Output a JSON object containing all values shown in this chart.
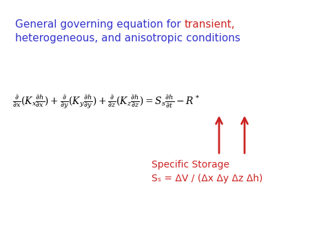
{
  "title_blue_part": "General governing equation for ",
  "title_red_part": "transient,",
  "title_line2": "heterogeneous, and anisotropic conditions",
  "title_color_blue": "#3333CC",
  "title_color_red": "#CC2222",
  "annotation_line1": "Specific Storage",
  "annotation_line2": "Sₛ = ΔV / (Δx Δy Δz Δh)",
  "annotation_color": "#CC2222",
  "arrow_color": "#CC2222",
  "bg_color": "#FFFFFF",
  "equation_color": "#000000",
  "eq_fontsize": 10,
  "title_fontsize": 11,
  "annot_fontsize": 10
}
